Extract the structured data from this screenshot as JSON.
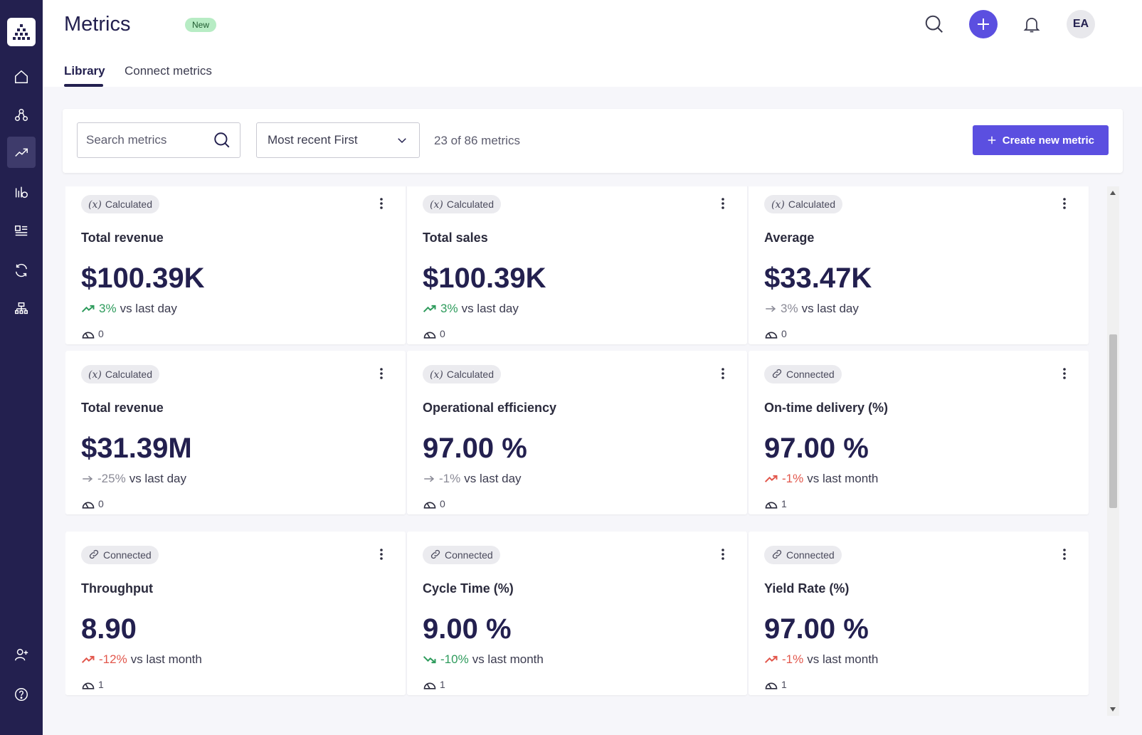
{
  "header": {
    "title": "Metrics",
    "badge": "New",
    "tabs": [
      {
        "label": "Library",
        "active": true
      },
      {
        "label": "Connect metrics",
        "active": false
      }
    ],
    "avatar_initials": "EA"
  },
  "toolbar": {
    "search_placeholder": "Search metrics",
    "sort_value": "Most recent First",
    "count_text": "23 of 86 metrics",
    "create_label": "Create new metric"
  },
  "colors": {
    "sidebar": "#23204f",
    "accent": "#5b4fe0",
    "positive": "#2e9b5c",
    "negative": "#e2574c",
    "neutral": "#8a8a96"
  },
  "cards": [
    {
      "type": "Calculated",
      "type_icon": "variable-icon",
      "name": "Total revenue",
      "value": "$100.39K",
      "trend": "up",
      "pct": "3%",
      "period": "vs last day",
      "usage": "0"
    },
    {
      "type": "Calculated",
      "type_icon": "variable-icon",
      "name": "Total sales",
      "value": "$100.39K",
      "trend": "up",
      "pct": "3%",
      "period": "vs last day",
      "usage": "0"
    },
    {
      "type": "Calculated",
      "type_icon": "variable-icon",
      "name": "Average",
      "value": "$33.47K",
      "trend": "flat",
      "pct": "3%",
      "period": "vs last day",
      "usage": "0"
    },
    {
      "type": "Calculated",
      "type_icon": "variable-icon",
      "name": "Total revenue",
      "value": "$31.39M",
      "trend": "flat",
      "pct": "-25%",
      "period": "vs last day",
      "usage": "0"
    },
    {
      "type": "Calculated",
      "type_icon": "variable-icon",
      "name": "Operational efficiency",
      "value": "97.00 %",
      "trend": "flat",
      "pct": "-1%",
      "period": "vs last day",
      "usage": "0"
    },
    {
      "type": "Connected",
      "type_icon": "link-icon",
      "name": "On-time delivery (%)",
      "value": "97.00 %",
      "trend": "bad-up",
      "pct": "-1%",
      "period": "vs last month",
      "usage": "1"
    },
    {
      "type": "Connected",
      "type_icon": "link-icon",
      "name": "Throughput",
      "value": "8.90",
      "trend": "bad-up",
      "pct": "-12%",
      "period": "vs last month",
      "usage": "1"
    },
    {
      "type": "Connected",
      "type_icon": "link-icon",
      "name": "Cycle Time (%)",
      "value": "9.00 %",
      "trend": "good-down",
      "pct": "-10%",
      "period": "vs last month",
      "usage": "1"
    },
    {
      "type": "Connected",
      "type_icon": "link-icon",
      "name": "Yield Rate (%)",
      "value": "97.00 %",
      "trend": "bad-up",
      "pct": "-1%",
      "period": "vs last month",
      "usage": "1"
    }
  ]
}
